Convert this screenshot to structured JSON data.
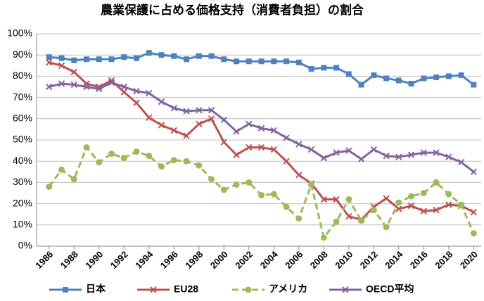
{
  "chart_data": {
    "type": "line",
    "title": "農業保護に占める価格支持（消費者負担）の割合",
    "x": [
      1986,
      1987,
      1988,
      1989,
      1990,
      1991,
      1992,
      1993,
      1994,
      1995,
      1996,
      1997,
      1998,
      1999,
      2000,
      2001,
      2002,
      2003,
      2004,
      2005,
      2006,
      2007,
      2008,
      2009,
      2010,
      2011,
      2012,
      2013,
      2014,
      2015,
      2016,
      2017,
      2018,
      2019,
      2020
    ],
    "series": [
      {
        "name": "日本",
        "color": "#4f81bd",
        "marker": "square",
        "dashed": false,
        "values": [
          89,
          88.5,
          87.5,
          88,
          88,
          88,
          89,
          88.5,
          91,
          90,
          89.5,
          88,
          89.5,
          89.5,
          88,
          87,
          87,
          87,
          87,
          87,
          86.5,
          83.5,
          84,
          84,
          81,
          76,
          80.5,
          79,
          78,
          76.5,
          79,
          79.5,
          80,
          80.5,
          76
        ]
      },
      {
        "name": "EU28",
        "color": "#c0504d",
        "marker": "x",
        "dashed": false,
        "values": [
          86.5,
          85,
          82,
          76.5,
          75,
          78,
          72.5,
          67.5,
          60.5,
          57,
          54.5,
          52,
          57.5,
          60,
          49,
          43,
          46.5,
          46.5,
          45.5,
          40,
          33.5,
          29.5,
          22,
          22,
          14,
          12.5,
          18.5,
          22.5,
          17.5,
          19,
          16.5,
          17,
          19.5,
          19,
          16
        ]
      },
      {
        "name": "アメリカ",
        "color": "#9bbb59",
        "marker": "circle",
        "dashed": true,
        "values": [
          28,
          36,
          31.5,
          46.5,
          39.5,
          43.5,
          41.5,
          44.5,
          42.5,
          37.5,
          40.5,
          40,
          38,
          31.5,
          26.5,
          29,
          30,
          24,
          24.5,
          18.5,
          13,
          29,
          4,
          11.5,
          22,
          12,
          17,
          9,
          20.5,
          23.5,
          25,
          30,
          24.5,
          19.5,
          6
        ]
      },
      {
        "name": "OECD平均",
        "color": "#8064a2",
        "marker": "x",
        "dashed": false,
        "values": [
          75,
          76.5,
          76,
          75,
          74,
          77,
          75,
          73,
          72,
          68,
          65,
          63.5,
          64,
          64,
          59.5,
          54,
          57.5,
          55.5,
          54.5,
          51,
          48,
          45.5,
          41.5,
          44,
          45,
          41,
          45.5,
          42.5,
          42,
          43,
          44,
          44,
          42,
          39.5,
          35
        ]
      }
    ],
    "xlim": [
      1985,
      2020.6
    ],
    "xticks": [
      1986,
      1988,
      1990,
      1992,
      1994,
      1996,
      1998,
      2000,
      2002,
      2004,
      2006,
      2008,
      2010,
      2012,
      2014,
      2016,
      2018,
      2020
    ],
    "ylim": [
      0,
      100
    ],
    "yticks": [
      {
        "value": 0,
        "label": "0%"
      },
      {
        "value": 10,
        "label": "10%"
      },
      {
        "value": 20,
        "label": "20%"
      },
      {
        "value": 30,
        "label": "30%"
      },
      {
        "value": 40,
        "label": "40%"
      },
      {
        "value": 50,
        "label": "50%"
      },
      {
        "value": 60,
        "label": "60%"
      },
      {
        "value": 70,
        "label": "70%"
      },
      {
        "value": 80,
        "label": "80%"
      },
      {
        "value": 90,
        "label": "90%"
      },
      {
        "value": 100,
        "label": "100%"
      }
    ],
    "grid": true,
    "legend": "bottom"
  }
}
